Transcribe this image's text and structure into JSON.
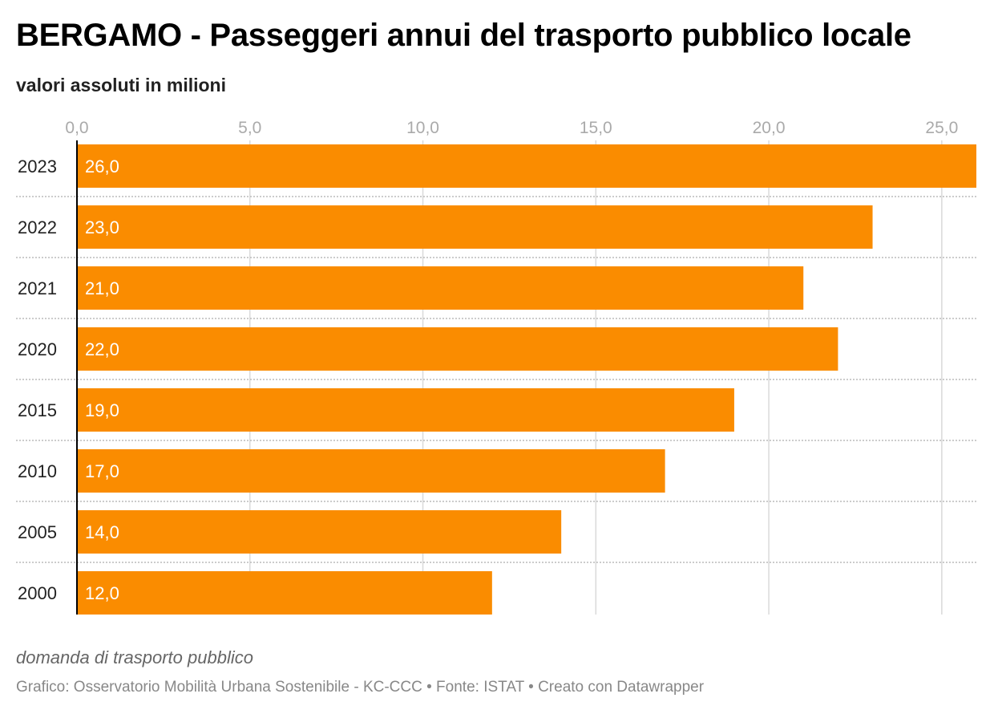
{
  "header": {
    "title": "BERGAMO - Passeggeri annui del trasporto pubblico locale",
    "subtitle": "valori assoluti in milioni"
  },
  "footer": {
    "note": "domanda di trasporto pubblico",
    "credits": "Grafico: Osservatorio Mobilità Urbana Sostenibile - KC-CCC • Fonte: ISTAT • Creato con Datawrapper"
  },
  "colors": {
    "bar": "#fa8c00",
    "grid": "#d9d9d9",
    "axis": "#000000"
  },
  "chart_data": {
    "type": "bar",
    "orientation": "horizontal",
    "title": "BERGAMO - Passeggeri annui del trasporto pubblico locale",
    "subtitle": "valori assoluti in milioni",
    "categories": [
      "2023",
      "2022",
      "2021",
      "2020",
      "2015",
      "2010",
      "2005",
      "2000"
    ],
    "values": [
      26.0,
      23.0,
      21.0,
      22.0,
      19.0,
      17.0,
      14.0,
      12.0
    ],
    "value_labels": [
      "26,0",
      "23,0",
      "21,0",
      "22,0",
      "19,0",
      "17,0",
      "14,0",
      "12,0"
    ],
    "xticks": [
      0,
      5,
      10,
      15,
      20,
      25
    ],
    "xtick_labels": [
      "0,0",
      "5,0",
      "10,0",
      "15,0",
      "20,0",
      "25,0"
    ],
    "xlim": [
      0,
      26
    ],
    "axis_position": "top",
    "grid": true,
    "legend": "none"
  }
}
